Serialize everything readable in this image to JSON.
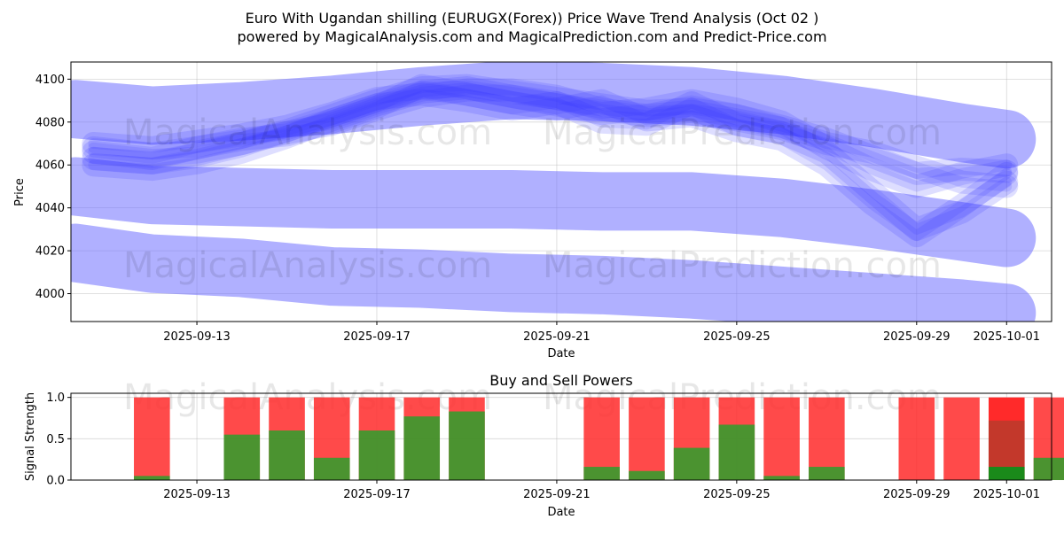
{
  "figure": {
    "title_line1": "Euro With Ugandan shilling (EURUGX(Forex)) Price Wave Trend Analysis (Oct 02 )",
    "title_line2": "powered by MagicalAnalysis.com and MagicalPrediction.com and Predict-Price.com",
    "watermarks": [
      "MagicalAnalysis.com",
      "MagicalPrediction.com"
    ],
    "colors": {
      "band": "#6f6fff",
      "wave": "#3030ff",
      "buy": "#2ca02c",
      "sell": "#ff2a2a",
      "dark_sell": "#c0392b",
      "dark_buy": "#1a8a1a"
    }
  },
  "chart_data": [
    {
      "type": "line",
      "title": "",
      "xlabel": "Date",
      "ylabel": "Price",
      "ylim": [
        3987,
        4108
      ],
      "x_ticks": [
        "2025-09-13",
        "2025-09-17",
        "2025-09-21",
        "2025-09-25",
        "2025-09-29",
        "2025-10-01"
      ],
      "x_tick_days": [
        2,
        6,
        10,
        14,
        18,
        20
      ],
      "y_ticks": [
        4000,
        4020,
        4040,
        4060,
        4080,
        4100
      ],
      "grid": true,
      "x_domain_days": [
        -0.8,
        21.0
      ],
      "bands": [
        {
          "name": "upper band",
          "x": [
            -0.7,
            1,
            3,
            5,
            7,
            9,
            11,
            13,
            15,
            17,
            19,
            20
          ],
          "y": [
            4086,
            4083,
            4085,
            4088,
            4092,
            4095,
            4094,
            4092,
            4088,
            4082,
            4075,
            4072
          ]
        },
        {
          "name": "middle band",
          "x": [
            -0.7,
            1,
            3,
            5,
            7,
            9,
            11,
            13,
            15,
            17,
            19,
            20
          ],
          "y": [
            4050,
            4046,
            4045,
            4044,
            4044,
            4044,
            4043,
            4043,
            4040,
            4035,
            4029,
            4026
          ]
        },
        {
          "name": "lower band",
          "x": [
            -0.7,
            1,
            3,
            5,
            7,
            9,
            11,
            13,
            15,
            17,
            19,
            20
          ],
          "y": [
            4019,
            4014,
            4012,
            4008,
            4007,
            4005,
            4004,
            4002,
            3999,
            3996,
            3993,
            3991
          ]
        }
      ],
      "waves": [
        {
          "x": [
            -0.3,
            1,
            2,
            3,
            4,
            5,
            6,
            7,
            8,
            9,
            10,
            11,
            12,
            13,
            14,
            15,
            16,
            17,
            18,
            19,
            20
          ],
          "y": [
            4063,
            4061,
            4065,
            4070,
            4076,
            4083,
            4090,
            4096,
            4097,
            4094,
            4091,
            4088,
            4085,
            4086,
            4083,
            4078,
            4072,
            4064,
            4056,
            4058,
            4057
          ]
        },
        {
          "x": [
            -0.3,
            1,
            2,
            3,
            4,
            5,
            6,
            7,
            8,
            9,
            10,
            11,
            12,
            13,
            14,
            15,
            16,
            17,
            18,
            19,
            20
          ],
          "y": [
            4070,
            4068,
            4071,
            4074,
            4078,
            4084,
            4091,
            4093,
            4090,
            4086,
            4089,
            4080,
            4079,
            4089,
            4079,
            4075,
            4066,
            4048,
            4030,
            4038,
            4052
          ]
        },
        {
          "x": [
            -0.3,
            1,
            2,
            3,
            4,
            5,
            6,
            7,
            8,
            9,
            10,
            11,
            12,
            13,
            14,
            15,
            16,
            17,
            18,
            19,
            20
          ],
          "y": [
            4060,
            4058,
            4061,
            4066,
            4073,
            4081,
            4088,
            4094,
            4096,
            4092,
            4088,
            4084,
            4086,
            4090,
            4086,
            4080,
            4068,
            4058,
            4050,
            4056,
            4060
          ]
        },
        {
          "x": [
            -0.3,
            1,
            2,
            3,
            4,
            5,
            6,
            7,
            8,
            9,
            10,
            11,
            12,
            13,
            14,
            15,
            16,
            17,
            18,
            19,
            20
          ],
          "y": [
            4066,
            4063,
            4068,
            4072,
            4074,
            4080,
            4087,
            4097,
            4093,
            4089,
            4086,
            4090,
            4081,
            4083,
            4076,
            4072,
            4060,
            4042,
            4027,
            4041,
            4056
          ]
        },
        {
          "x": [
            -0.3,
            1,
            2,
            3,
            4,
            5,
            6,
            7,
            8,
            9,
            10,
            11,
            12,
            13,
            14,
            15,
            16,
            17,
            18,
            19,
            20
          ],
          "y": [
            4068,
            4065,
            4066,
            4070,
            4075,
            4079,
            4086,
            4092,
            4095,
            4095,
            4092,
            4086,
            4083,
            4085,
            4081,
            4077,
            4070,
            4066,
            4059,
            4052,
            4050
          ]
        }
      ]
    },
    {
      "type": "bar",
      "title": "Buy and Sell Powers",
      "xlabel": "Date",
      "ylabel": "Signal Strength",
      "ylim": [
        0,
        1.05
      ],
      "y_ticks": [
        0.0,
        0.5,
        1.0
      ],
      "x_ticks": [
        "2025-09-13",
        "2025-09-17",
        "2025-09-21",
        "2025-09-25",
        "2025-09-29",
        "2025-10-01"
      ],
      "x_tick_days": [
        2,
        6,
        10,
        14,
        18,
        20
      ],
      "grid": true,
      "x_domain_days": [
        -0.8,
        21.0
      ],
      "bars": [
        {
          "day": 1,
          "buy": 0.05
        },
        {
          "day": 3,
          "buy": 0.55
        },
        {
          "day": 4,
          "buy": 0.6
        },
        {
          "day": 5,
          "buy": 0.27
        },
        {
          "day": 6,
          "buy": 0.6
        },
        {
          "day": 7,
          "buy": 0.77
        },
        {
          "day": 8,
          "buy": 0.83
        },
        {
          "day": 11,
          "buy": 0.16
        },
        {
          "day": 12,
          "buy": 0.11
        },
        {
          "day": 13,
          "buy": 0.39
        },
        {
          "day": 14,
          "buy": 0.67
        },
        {
          "day": 15,
          "buy": 0.05
        },
        {
          "day": 16,
          "buy": 0.16
        },
        {
          "day": 18,
          "buy": 0.0
        },
        {
          "day": 19,
          "buy": 0.0
        },
        {
          "day": 20,
          "buy": 0.16,
          "mid": 0.72,
          "highlight": true
        },
        {
          "day": 21,
          "buy": 0.27
        }
      ]
    }
  ]
}
